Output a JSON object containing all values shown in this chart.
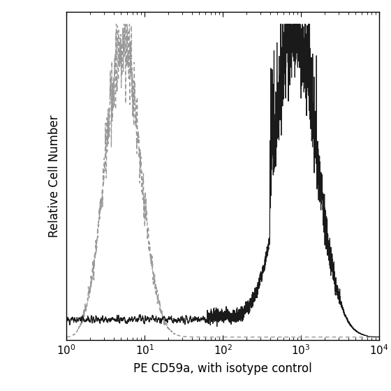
{
  "title": "",
  "xlabel": "PE CD59a, with isotype control",
  "ylabel": "Relative Cell Number",
  "xlim": [
    1,
    10000
  ],
  "background_color": "#ffffff",
  "isotype_color": "#999999",
  "antibody_color": "#1a1a1a",
  "isotype_linestyle": "--",
  "antibody_linestyle": "-",
  "isotype_linewidth": 1.0,
  "antibody_linewidth": 0.9,
  "xlabel_fontsize": 12,
  "ylabel_fontsize": 12,
  "tick_fontsize": 11,
  "isotype_log_mean": 0.72,
  "isotype_log_std": 0.22,
  "antibody_log_mean": 2.92,
  "antibody_log_std": 0.28
}
